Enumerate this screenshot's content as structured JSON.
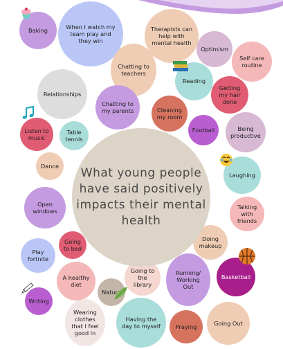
{
  "title": "What young people have said positively impacts their mental health",
  "colors": {
    "lavender": "#c49be0",
    "periwinkle": "#bac7f6",
    "peach": "#efcdb4",
    "terracotta": "#d6735f",
    "mint": "#a9ddd9",
    "rose": "#e05c73",
    "purple": "#b85ed1",
    "mauve": "#d8b9d4",
    "grey": "#dddddd",
    "beige": "#dcd1c2",
    "pink": "#f5b8b8",
    "magenta": "#a81f8b",
    "taupe": "#c3b6a9",
    "center": "#ddd4c8"
  },
  "bubbles": [
    {
      "id": "baking",
      "label": "Baking"
    },
    {
      "id": "team",
      "label": "When I watch my team play and they win"
    },
    {
      "id": "therapists",
      "label": "Therapists can help with mental health"
    },
    {
      "id": "optimism",
      "label": "Optimism"
    },
    {
      "id": "selfcare",
      "label": "Self care routine"
    },
    {
      "id": "teachers",
      "label": "Chatting to teachers"
    },
    {
      "id": "reading",
      "label": "Reading"
    },
    {
      "id": "haircut",
      "label": "Getting my hair done"
    },
    {
      "id": "relationships",
      "label": "Relationships"
    },
    {
      "id": "parents",
      "label": "Chatting to my parents"
    },
    {
      "id": "cleaning",
      "label": "Cleaning my room"
    },
    {
      "id": "football",
      "label": "Football"
    },
    {
      "id": "productive",
      "label": "Being productive"
    },
    {
      "id": "music",
      "label": "Listen to music"
    },
    {
      "id": "tabletennis",
      "label": "Table tennis"
    },
    {
      "id": "dance",
      "label": "Dance"
    },
    {
      "id": "laughing",
      "label": "Laughing"
    },
    {
      "id": "windows",
      "label": "Open windows"
    },
    {
      "id": "friends",
      "label": "Talking with friends"
    },
    {
      "id": "bed",
      "label": "Going to bed"
    },
    {
      "id": "makeup",
      "label": "Doing makeup"
    },
    {
      "id": "fortnite",
      "label": "Play fortnite"
    },
    {
      "id": "diet",
      "label": "A healthy diet"
    },
    {
      "id": "library",
      "label": "Going to the library"
    },
    {
      "id": "running",
      "label": "Running/ Working Out"
    },
    {
      "id": "basketball",
      "label": "Basketball"
    },
    {
      "id": "nature",
      "label": "Nature"
    },
    {
      "id": "writing",
      "label": "Writing"
    },
    {
      "id": "clothes",
      "label": "Wearing clothes that I feel good in"
    },
    {
      "id": "day",
      "label": "Having the day to myself"
    },
    {
      "id": "praying",
      "label": "Praying"
    },
    {
      "id": "goingout",
      "label": "Going Out"
    }
  ],
  "icons": [
    "cupcake-icon",
    "books-icon",
    "music-notes-icon",
    "laughing-emoji-icon",
    "basketball-icon",
    "pencil-icon",
    "leaf-icon"
  ]
}
